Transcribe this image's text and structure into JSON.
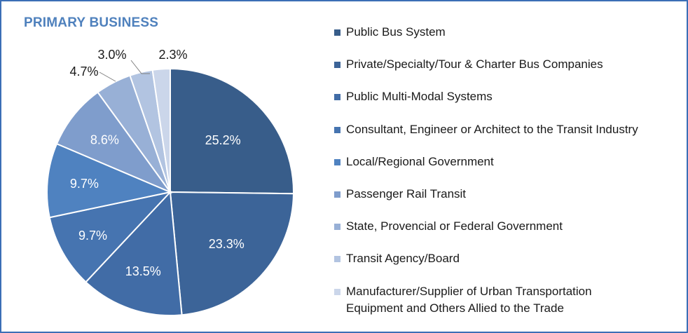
{
  "chart_data": {
    "type": "pie",
    "title": "PRIMARY BUSINESS",
    "legend_position": "right",
    "slices": [
      {
        "name": "Public Bus System",
        "value": 25.2,
        "label": "25.2%",
        "color": "#385d8a"
      },
      {
        "name": "Private/Specialty/Tour & Charter Bus Companies",
        "value": 23.3,
        "label": "23.3%",
        "color": "#3c6498"
      },
      {
        "name": "Public Multi-Modal Systems",
        "value": 13.5,
        "label": "13.5%",
        "color": "#416ca6"
      },
      {
        "name": "Consultant, Engineer or Architect to the Transit Industry",
        "value": 9.7,
        "label": "9.7%",
        "color": "#4674b0"
      },
      {
        "name": "Local/Regional Government",
        "value": 9.7,
        "label": "9.7%",
        "color": "#4f82c0"
      },
      {
        "name": "Passenger Rail Transit",
        "value": 8.6,
        "label": "8.6%",
        "color": "#7f9dcc"
      },
      {
        "name": "State, Provencial or Federal Government",
        "value": 4.7,
        "label": "4.7%",
        "color": "#98b0d6"
      },
      {
        "name": "Transit Agency/Board",
        "value": 3.0,
        "label": "3.0%",
        "color": "#b2c4e1"
      },
      {
        "name": "Manufacturer/Supplier of Urban Transportation Equipment and Others Allied to the Trade",
        "value": 2.3,
        "label": "2.3%",
        "color": "#cbd6ea"
      }
    ]
  }
}
